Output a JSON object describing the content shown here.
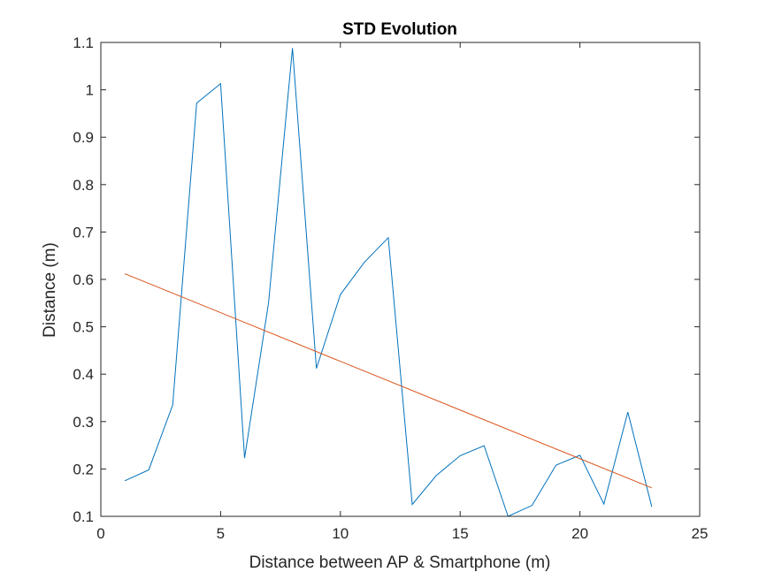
{
  "chart_data": {
    "type": "line",
    "title": "STD Evolution",
    "xlabel": "Distance between AP & Smartphone (m)",
    "ylabel": "Distance (m)",
    "xlim": [
      0,
      25
    ],
    "ylim": [
      0.1,
      1.1
    ],
    "xticks": [
      0,
      5,
      10,
      15,
      20,
      25
    ],
    "yticks": [
      0.1,
      0.2,
      0.3,
      0.4,
      0.5,
      0.6,
      0.7,
      0.8,
      0.9,
      1.0,
      1.1
    ],
    "xtick_labels": [
      "0",
      "5",
      "10",
      "15",
      "20",
      "25"
    ],
    "ytick_labels": [
      "0.1",
      "0.2",
      "0.3",
      "0.4",
      "0.5",
      "0.6",
      "0.7",
      "0.8",
      "0.9",
      "1",
      "1.1"
    ],
    "grid": false,
    "series": [
      {
        "color": "#0072BD",
        "x": [
          1,
          2,
          3,
          4,
          5,
          6,
          7,
          8,
          9,
          10,
          11,
          12,
          13,
          14,
          15,
          16,
          17,
          18,
          19,
          20,
          21,
          22,
          23
        ],
        "y": [
          0.175,
          0.198,
          0.335,
          0.972,
          1.013,
          0.223,
          0.55,
          1.088,
          0.412,
          0.568,
          0.636,
          0.688,
          0.125,
          0.186,
          0.228,
          0.249,
          0.1,
          0.123,
          0.208,
          0.229,
          0.126,
          0.32,
          0.12
        ]
      },
      {
        "color": "#D95319",
        "x": [
          1,
          23
        ],
        "y": [
          0.612,
          0.16
        ]
      }
    ]
  }
}
